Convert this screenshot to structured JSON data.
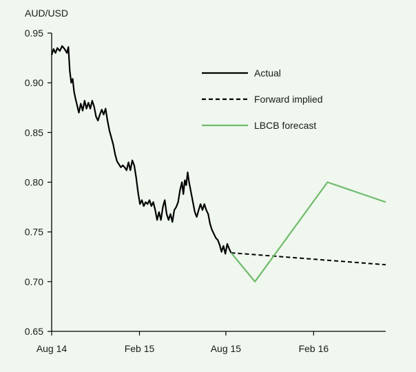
{
  "chart_data": {
    "type": "line",
    "ylabel": "AUD/USD",
    "ylim": [
      0.65,
      0.95
    ],
    "yticks": [
      "0.65",
      "0.70",
      "0.75",
      "0.80",
      "0.85",
      "0.90",
      "0.95"
    ],
    "xlim": [
      "2014-08-01",
      "2016-07-01"
    ],
    "xticks": [
      {
        "date": "2014-08-01",
        "label": "Aug 14"
      },
      {
        "date": "2015-02-01",
        "label": "Feb 15"
      },
      {
        "date": "2015-08-01",
        "label": "Aug 15"
      },
      {
        "date": "2016-02-01",
        "label": "Feb 16"
      }
    ],
    "grid": false,
    "legend_position": "top-right",
    "series": [
      {
        "name": "Actual",
        "style": "solid",
        "color": "#000000",
        "points": [
          [
            "2014-08-01",
            0.928
          ],
          [
            "2014-08-05",
            0.934
          ],
          [
            "2014-08-09",
            0.93
          ],
          [
            "2014-08-13",
            0.935
          ],
          [
            "2014-08-18",
            0.932
          ],
          [
            "2014-08-23",
            0.937
          ],
          [
            "2014-08-28",
            0.934
          ],
          [
            "2014-09-02",
            0.93
          ],
          [
            "2014-09-05",
            0.936
          ],
          [
            "2014-09-08",
            0.912
          ],
          [
            "2014-09-11",
            0.9
          ],
          [
            "2014-09-14",
            0.904
          ],
          [
            "2014-09-17",
            0.891
          ],
          [
            "2014-09-20",
            0.884
          ],
          [
            "2014-09-23",
            0.878
          ],
          [
            "2014-09-27",
            0.87
          ],
          [
            "2014-10-01",
            0.879
          ],
          [
            "2014-10-05",
            0.872
          ],
          [
            "2014-10-09",
            0.882
          ],
          [
            "2014-10-13",
            0.874
          ],
          [
            "2014-10-17",
            0.88
          ],
          [
            "2014-10-21",
            0.874
          ],
          [
            "2014-10-25",
            0.882
          ],
          [
            "2014-10-29",
            0.876
          ],
          [
            "2014-11-02",
            0.866
          ],
          [
            "2014-11-06",
            0.862
          ],
          [
            "2014-11-10",
            0.868
          ],
          [
            "2014-11-14",
            0.873
          ],
          [
            "2014-11-18",
            0.868
          ],
          [
            "2014-11-22",
            0.874
          ],
          [
            "2014-11-26",
            0.862
          ],
          [
            "2014-11-30",
            0.852
          ],
          [
            "2014-12-04",
            0.845
          ],
          [
            "2014-12-08",
            0.838
          ],
          [
            "2014-12-12",
            0.828
          ],
          [
            "2014-12-16",
            0.821
          ],
          [
            "2014-12-20",
            0.818
          ],
          [
            "2014-12-24",
            0.815
          ],
          [
            "2014-12-28",
            0.817
          ],
          [
            "2015-01-01",
            0.815
          ],
          [
            "2015-01-05",
            0.812
          ],
          [
            "2015-01-09",
            0.82
          ],
          [
            "2015-01-13",
            0.812
          ],
          [
            "2015-01-17",
            0.822
          ],
          [
            "2015-01-21",
            0.817
          ],
          [
            "2015-01-25",
            0.805
          ],
          [
            "2015-01-29",
            0.79
          ],
          [
            "2015-02-02",
            0.778
          ],
          [
            "2015-02-06",
            0.782
          ],
          [
            "2015-02-10",
            0.776
          ],
          [
            "2015-02-14",
            0.78
          ],
          [
            "2015-02-18",
            0.778
          ],
          [
            "2015-02-22",
            0.782
          ],
          [
            "2015-02-26",
            0.776
          ],
          [
            "2015-03-02",
            0.78
          ],
          [
            "2015-03-06",
            0.772
          ],
          [
            "2015-03-10",
            0.762
          ],
          [
            "2015-03-14",
            0.77
          ],
          [
            "2015-03-18",
            0.762
          ],
          [
            "2015-03-22",
            0.775
          ],
          [
            "2015-03-26",
            0.782
          ],
          [
            "2015-03-30",
            0.768
          ],
          [
            "2015-04-03",
            0.762
          ],
          [
            "2015-04-07",
            0.768
          ],
          [
            "2015-04-11",
            0.76
          ],
          [
            "2015-04-15",
            0.772
          ],
          [
            "2015-04-19",
            0.775
          ],
          [
            "2015-04-23",
            0.78
          ],
          [
            "2015-04-27",
            0.792
          ],
          [
            "2015-05-01",
            0.8
          ],
          [
            "2015-05-04",
            0.788
          ],
          [
            "2015-05-07",
            0.802
          ],
          [
            "2015-05-10",
            0.797
          ],
          [
            "2015-05-13",
            0.81
          ],
          [
            "2015-05-16",
            0.8
          ],
          [
            "2015-05-20",
            0.79
          ],
          [
            "2015-05-24",
            0.78
          ],
          [
            "2015-05-28",
            0.77
          ],
          [
            "2015-06-01",
            0.765
          ],
          [
            "2015-06-05",
            0.772
          ],
          [
            "2015-06-09",
            0.778
          ],
          [
            "2015-06-13",
            0.772
          ],
          [
            "2015-06-17",
            0.778
          ],
          [
            "2015-06-21",
            0.772
          ],
          [
            "2015-06-25",
            0.768
          ],
          [
            "2015-06-29",
            0.758
          ],
          [
            "2015-07-03",
            0.752
          ],
          [
            "2015-07-07",
            0.748
          ],
          [
            "2015-07-11",
            0.744
          ],
          [
            "2015-07-15",
            0.742
          ],
          [
            "2015-07-19",
            0.737
          ],
          [
            "2015-07-23",
            0.73
          ],
          [
            "2015-07-27",
            0.736
          ],
          [
            "2015-07-31",
            0.728
          ],
          [
            "2015-08-04",
            0.738
          ],
          [
            "2015-08-08",
            0.733
          ],
          [
            "2015-08-12",
            0.729
          ]
        ]
      },
      {
        "name": "Forward implied",
        "style": "dashed",
        "color": "#000000",
        "points": [
          [
            "2015-08-12",
            0.729
          ],
          [
            "2016-07-01",
            0.717
          ]
        ]
      },
      {
        "name": "LBCB forecast",
        "style": "solid",
        "color": "#6fba6a",
        "points": [
          [
            "2015-08-12",
            0.729
          ],
          [
            "2015-10-01",
            0.7
          ],
          [
            "2016-03-01",
            0.8
          ],
          [
            "2016-07-01",
            0.78
          ]
        ]
      }
    ]
  }
}
